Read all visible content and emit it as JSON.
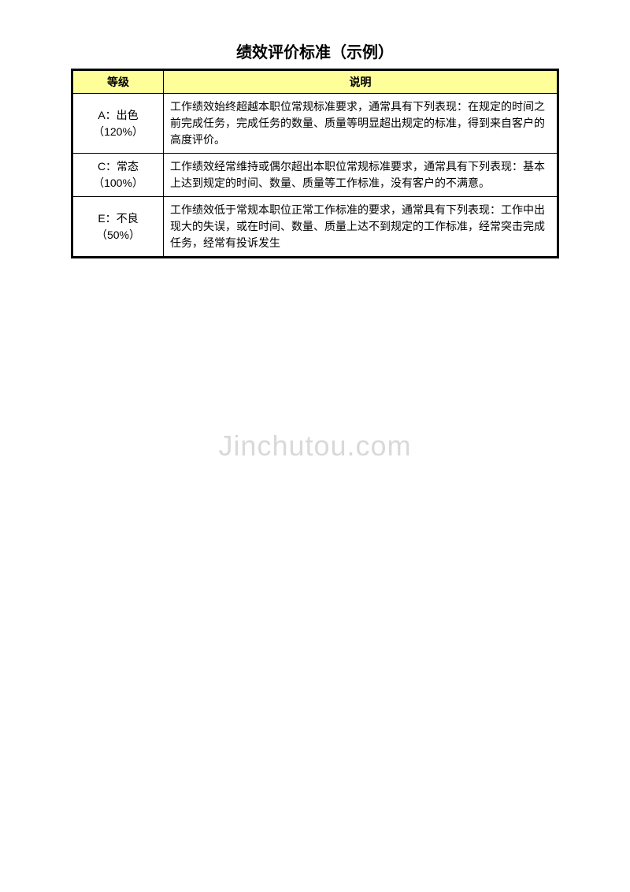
{
  "title": "绩效评价标准（示例）",
  "watermark": "Jinchutou.com",
  "table": {
    "headers": {
      "grade": "等级",
      "description": "说明"
    },
    "rows": [
      {
        "grade_label": "A：出色",
        "grade_percent": "（120%）",
        "description": "工作绩效始终超越本职位常规标准要求，通常具有下列表现：在规定的时间之前完成任务，完成任务的数量、质量等明显超出规定的标准，得到来自客户的高度评价。"
      },
      {
        "grade_label": "C：常态",
        "grade_percent": "（100%）",
        "description": "工作绩效经常维持或偶尔超出本职位常规标准要求，通常具有下列表现：基本上达到规定的时间、数量、质量等工作标准，没有客户的不满意。"
      },
      {
        "grade_label": "E：不良",
        "grade_percent": "（50%）",
        "description": "工作绩效低于常规本职位正常工作标准的要求，通常具有下列表现：工作中出现大的失误，或在时间、数量、质量上达不到规定的工作标准，经常突击完成任务，经常有投诉发生"
      }
    ]
  },
  "colors": {
    "header_bg": "#ffff99",
    "border": "#000000",
    "text": "#000000",
    "watermark": "#d9d9d9",
    "background": "#ffffff"
  }
}
